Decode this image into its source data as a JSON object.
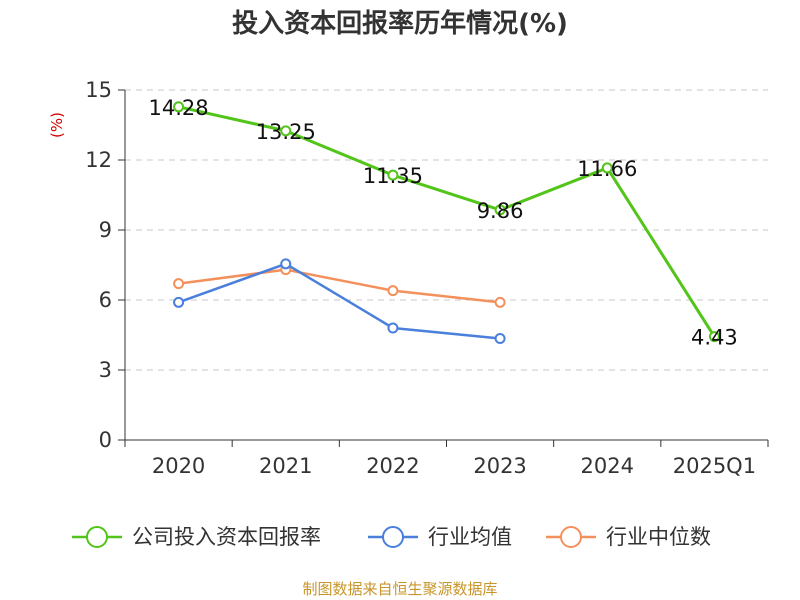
{
  "chart_data": {
    "type": "line",
    "title": "投入资本回报率历年情况(%)",
    "ylabel": "(%)",
    "xlabel": "",
    "categories": [
      "2020",
      "2021",
      "2022",
      "2023",
      "2024",
      "2025Q1"
    ],
    "ylim": [
      0,
      15
    ],
    "yticks": [
      0,
      3,
      6,
      9,
      12,
      15
    ],
    "grid": true,
    "legend_position": "bottom",
    "series": [
      {
        "name": "公司投入资本回报率",
        "color": "#52c41a",
        "values": [
          14.28,
          13.25,
          11.35,
          9.86,
          11.66,
          4.43
        ],
        "labels": [
          "14.28",
          "13.25",
          "11.35",
          "9.86",
          "11.66",
          "4.43"
        ]
      },
      {
        "name": "行业均值",
        "color": "#4a7fdc",
        "values": [
          5.9,
          7.55,
          4.8,
          4.35,
          null,
          null
        ]
      },
      {
        "name": "行业中位数",
        "color": "#f4905c",
        "values": [
          6.7,
          7.3,
          6.4,
          5.9,
          null,
          null
        ]
      }
    ]
  },
  "source": "制图数据来自恒生聚源数据库"
}
